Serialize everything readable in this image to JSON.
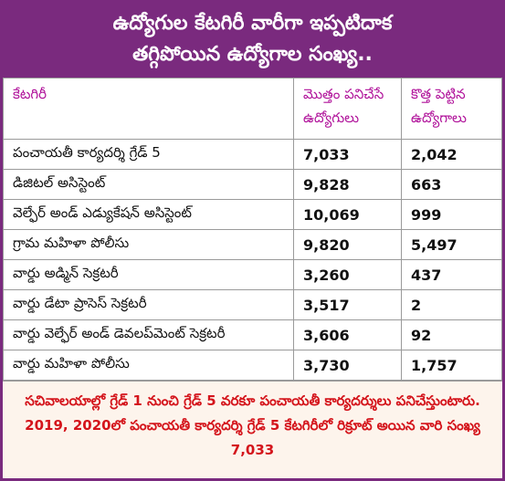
{
  "header": {
    "title_lines": [
      "ఉద్యోగుల కేటగిరీ వారీగా ఇప్పటిదాక",
      "తగ్గిపోయిన ఉద్యోగాల సంఖ్య.."
    ]
  },
  "table": {
    "columns": [
      "కేటగిరీ",
      "మొత్తం పనిచేసే ఉద్యోగులు",
      "కొత్త పెట్టిన ఉద్యోగాలు"
    ],
    "rows": [
      [
        "పంచాయతీ కార్యదర్శి గ్రేడ్ 5",
        "7,033",
        "2,042"
      ],
      [
        "డిజిటల్ అసిస్టెంట్",
        "9,828",
        "663"
      ],
      [
        "వెల్ఫేర్ అండ్ ఎడ్యుకేషన్ అసిస్టెంట్",
        "10,069",
        "999"
      ],
      [
        "గ్రామ మహిళా పోలీసు",
        "9,820",
        "5,497"
      ],
      [
        "వార్డు అడ్మిన్ సెక్రటరీ",
        "3,260",
        "437"
      ],
      [
        "వార్డు డేటా ప్రాసెస్ సెక్రటరీ",
        "3,517",
        "2"
      ],
      [
        "వార్డు వెల్ఫేర్ అండ్ డెవలప్‌మెంట్ సెక్రటరీ",
        "3,606",
        "92"
      ],
      [
        "వార్డు మహిళా పోలీసు",
        "3,730",
        "1,757"
      ]
    ]
  },
  "footer": {
    "note": "సచివాలయాల్లో గ్రేడ్ 1 నుంచి గ్రేడ్ 5 వరకూ పంచాయతీ కార్యదర్శులు పనిచేస్తుంటారు. 2019, 2020లో పంచాయతీ కార్యదర్శి గ్రేడ్ 5 కేటగిరీలో రిక్రూట్ అయిన వారి సంఖ్య 7,033"
  }
}
